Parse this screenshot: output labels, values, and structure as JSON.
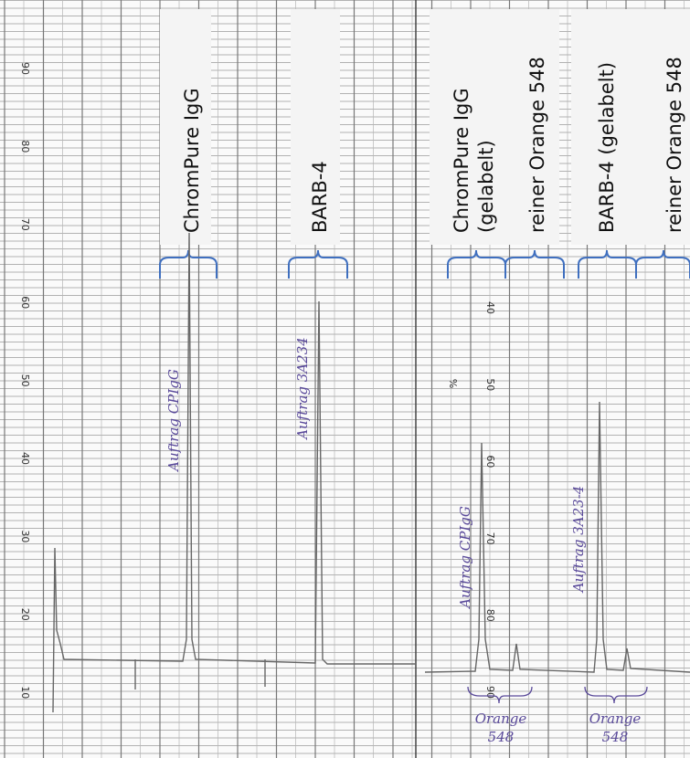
{
  "left_scale": {
    "ticks": [
      90,
      80,
      70,
      60,
      50,
      40,
      30,
      20,
      10
    ]
  },
  "mid_scale": {
    "unit": "%",
    "ticks": [
      40,
      50,
      60,
      70,
      80,
      90
    ]
  },
  "labels": [
    {
      "lines": [
        "ChromPure IgG"
      ]
    },
    {
      "lines": [
        "BARB-4"
      ]
    },
    {
      "lines": [
        "ChromPure IgG",
        "(gelabelt)"
      ]
    },
    {
      "lines": [
        "reiner Orange 548"
      ]
    },
    {
      "lines": [
        "BARB-4 (gelabelt)"
      ]
    },
    {
      "lines": [
        "reiner Orange 548"
      ]
    }
  ],
  "handwriting": [
    {
      "text": "Auftrag CPIgG"
    },
    {
      "text": "Auftrag 3A234"
    },
    {
      "text": "Auftrag CPIgG"
    },
    {
      "text": "Auftrag 3A23-4"
    },
    {
      "text": "Orange 548"
    },
    {
      "text": "Orange 548"
    }
  ]
}
